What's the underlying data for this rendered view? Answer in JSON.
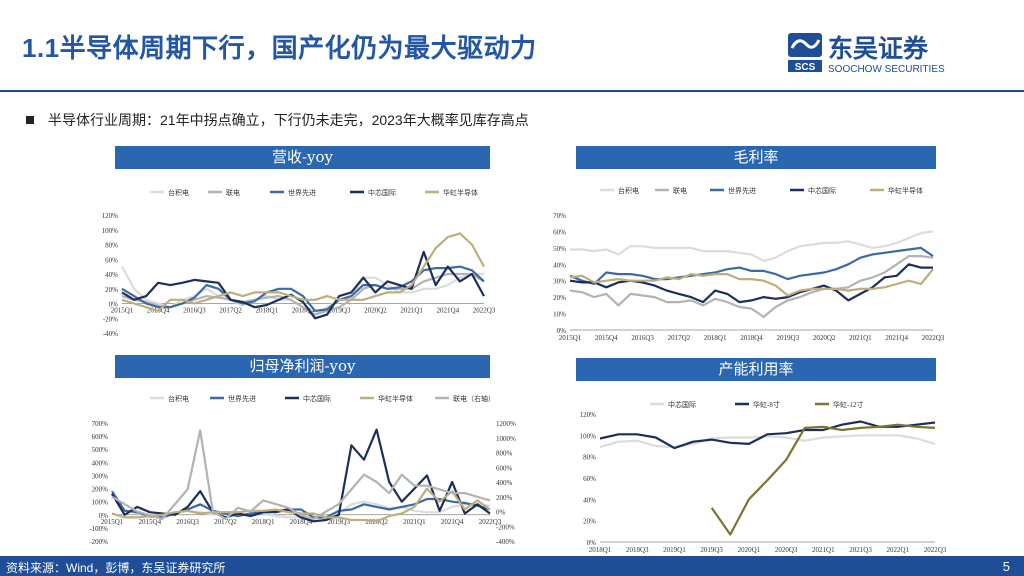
{
  "slide": {
    "title": "1.1半导体周期下行，国产化仍为最大驱动力",
    "bullet": "半导体行业周期：21年中拐点确立，下行仍未走完，2023年大概率见库存高点",
    "footer_source": "资料来源：Wind，彭博，东吴证券研究所",
    "page_number": "5"
  },
  "logo": {
    "name_cn": "东吴证券",
    "name_en": "SOOCHOW SECURITIES",
    "mark_text": "SCS"
  },
  "colors": {
    "brand_blue": "#1f4e96",
    "title_blue": "#2456a6",
    "panel_blue": "#2b67b0"
  },
  "chart_data": [
    {
      "id": "revenue-yoy",
      "type": "line",
      "title": "营收-yoy",
      "categories": [
        "2015Q1",
        "2015Q2",
        "2015Q3",
        "2015Q4",
        "2016Q1",
        "2016Q2",
        "2016Q3",
        "2016Q4",
        "2017Q1",
        "2017Q2",
        "2017Q3",
        "2017Q4",
        "2018Q1",
        "2018Q2",
        "2018Q3",
        "2018Q4",
        "2019Q1",
        "2019Q2",
        "2019Q3",
        "2019Q4",
        "2020Q1",
        "2020Q2",
        "2020Q3",
        "2020Q4",
        "2021Q1",
        "2021Q2",
        "2021Q3",
        "2021Q4",
        "2022Q1",
        "2022Q2",
        "2022Q3"
      ],
      "tick_labels": [
        "2015Q1",
        "2015Q4",
        "2016Q3",
        "2017Q2",
        "2018Q1",
        "2018Q4",
        "2019Q3",
        "2020Q2",
        "2021Q1",
        "2021Q4",
        "2022Q3"
      ],
      "ylim": [
        -40,
        120
      ],
      "yticks": [
        -40,
        -20,
        0,
        20,
        40,
        60,
        80,
        100,
        120
      ],
      "ytick_labels": [
        "-40%",
        "-20%",
        "0%",
        "20%",
        "40%",
        "60%",
        "80%",
        "100%",
        "120%"
      ],
      "series": [
        {
          "name": "台积电",
          "color": "#dcdcdc",
          "values": [
            50,
            20,
            5,
            0,
            -5,
            5,
            10,
            20,
            10,
            5,
            -3,
            5,
            10,
            5,
            5,
            -5,
            -15,
            -5,
            5,
            8,
            35,
            35,
            25,
            15,
            15,
            20,
            20,
            25,
            35,
            40,
            40
          ]
        },
        {
          "name": "联电",
          "color": "#b3b3b3",
          "values": [
            10,
            5,
            2,
            -3,
            -5,
            0,
            5,
            10,
            8,
            5,
            2,
            5,
            8,
            10,
            5,
            -5,
            -15,
            -10,
            -5,
            5,
            20,
            25,
            20,
            20,
            20,
            30,
            35,
            40,
            40,
            40,
            30
          ]
        },
        {
          "name": "世界先进",
          "color": "#3d6aa5",
          "values": [
            20,
            10,
            0,
            -5,
            -5,
            0,
            8,
            25,
            20,
            5,
            0,
            3,
            15,
            20,
            20,
            10,
            -10,
            -8,
            5,
            10,
            25,
            25,
            20,
            22,
            30,
            45,
            48,
            48,
            50,
            45,
            30
          ]
        },
        {
          "name": "中芯国际",
          "color": "#1b2f5a",
          "values": [
            15,
            5,
            10,
            28,
            25,
            28,
            32,
            30,
            28,
            5,
            2,
            -5,
            -2,
            5,
            12,
            2,
            -20,
            -15,
            10,
            15,
            35,
            15,
            30,
            25,
            20,
            70,
            25,
            50,
            30,
            40,
            10
          ]
        },
        {
          "name": "华虹半导体",
          "color": "#bfae7c",
          "values": [
            5,
            0,
            -5,
            -10,
            5,
            5,
            0,
            5,
            10,
            15,
            10,
            15,
            15,
            15,
            10,
            5,
            5,
            10,
            5,
            5,
            5,
            10,
            15,
            15,
            25,
            50,
            75,
            90,
            95,
            80,
            50
          ]
        }
      ]
    },
    {
      "id": "gross-margin",
      "type": "line",
      "title": "毛利率",
      "categories": [
        "2015Q1",
        "2015Q2",
        "2015Q3",
        "2015Q4",
        "2016Q1",
        "2016Q2",
        "2016Q3",
        "2016Q4",
        "2017Q1",
        "2017Q2",
        "2017Q3",
        "2017Q4",
        "2018Q1",
        "2018Q2",
        "2018Q3",
        "2018Q4",
        "2019Q1",
        "2019Q2",
        "2019Q3",
        "2019Q4",
        "2020Q1",
        "2020Q2",
        "2020Q3",
        "2020Q4",
        "2021Q1",
        "2021Q2",
        "2021Q3",
        "2021Q4",
        "2022Q1",
        "2022Q2",
        "2022Q3"
      ],
      "tick_labels": [
        "2015Q1",
        "2015Q4",
        "2016Q3",
        "2017Q2",
        "2018Q1",
        "2018Q4",
        "2019Q3",
        "2020Q2",
        "2021Q1",
        "2021Q4",
        "2022Q3"
      ],
      "ylim": [
        0,
        70
      ],
      "yticks": [
        0,
        10,
        20,
        30,
        40,
        50,
        60,
        70
      ],
      "ytick_labels": [
        "0%",
        "10%",
        "20%",
        "30%",
        "40%",
        "50%",
        "60%",
        "70%"
      ],
      "series": [
        {
          "name": "台积电",
          "color": "#dcdcdc",
          "values": [
            49,
            49,
            48,
            49,
            46,
            51,
            51,
            50,
            50,
            50,
            50,
            48,
            48,
            48,
            47,
            46,
            42,
            44,
            48,
            51,
            52,
            53,
            53,
            54,
            52,
            50,
            51,
            53,
            56,
            59,
            60
          ]
        },
        {
          "name": "联电",
          "color": "#b3b3b3",
          "values": [
            24,
            23,
            20,
            22,
            15,
            22,
            21,
            20,
            17,
            17,
            18,
            15,
            19,
            17,
            14,
            13,
            8,
            14,
            18,
            20,
            23,
            25,
            25,
            26,
            30,
            32,
            35,
            40,
            45,
            45,
            44
          ]
        },
        {
          "name": "世界先进",
          "color": "#3d6aa5",
          "values": [
            33,
            30,
            28,
            35,
            34,
            34,
            33,
            31,
            31,
            32,
            33,
            34,
            35,
            37,
            38,
            36,
            36,
            34,
            31,
            33,
            34,
            35,
            37,
            40,
            44,
            46,
            47,
            48,
            49,
            50,
            45
          ]
        },
        {
          "name": "中芯国际",
          "color": "#1b2f5a",
          "values": [
            30,
            29,
            29,
            26,
            29,
            30,
            29,
            27,
            24,
            22,
            20,
            17,
            24,
            22,
            17,
            18,
            20,
            19,
            20,
            23,
            25,
            27,
            24,
            18,
            22,
            26,
            32,
            33,
            40,
            38,
            38
          ]
        },
        {
          "name": "华虹半导体",
          "color": "#bfae7c",
          "values": [
            32,
            33,
            29,
            30,
            31,
            30,
            30,
            30,
            32,
            31,
            34,
            33,
            34,
            34,
            31,
            31,
            30,
            27,
            21,
            24,
            25,
            25,
            25,
            24,
            25,
            25,
            26,
            28,
            30,
            28,
            37
          ]
        }
      ]
    },
    {
      "id": "net-profit-yoy",
      "type": "line",
      "title": "归母净利润-yoy",
      "categories": [
        "2015Q1",
        "2015Q2",
        "2015Q3",
        "2015Q4",
        "2016Q1",
        "2016Q2",
        "2016Q3",
        "2016Q4",
        "2017Q1",
        "2017Q2",
        "2017Q3",
        "2017Q4",
        "2018Q1",
        "2018Q2",
        "2018Q3",
        "2018Q4",
        "2019Q1",
        "2019Q2",
        "2019Q3",
        "2019Q4",
        "2020Q1",
        "2020Q2",
        "2020Q3",
        "2020Q4",
        "2021Q1",
        "2021Q2",
        "2021Q3",
        "2021Q4",
        "2022Q1",
        "2022Q2",
        "2022Q3"
      ],
      "tick_labels": [
        "2015Q1",
        "2015Q4",
        "2016Q3",
        "2017Q2",
        "2018Q1",
        "2018Q4",
        "2019Q3",
        "2020Q2",
        "2021Q1",
        "2021Q4",
        "2022Q3"
      ],
      "ylim": [
        -200,
        700
      ],
      "yticks": [
        -200,
        -100,
        0,
        100,
        200,
        300,
        400,
        500,
        600,
        700
      ],
      "ytick_labels": [
        "-200%",
        "-100%",
        "0%",
        "100%",
        "200%",
        "300%",
        "400%",
        "500%",
        "600%",
        "700%"
      ],
      "y2lim": [
        -400,
        1200
      ],
      "y2ticks": [
        -400,
        -200,
        0,
        200,
        400,
        600,
        800,
        1000,
        1200
      ],
      "y2tick_labels": [
        "-400%",
        "-200%",
        "0%",
        "200%",
        "400%",
        "600%",
        "800%",
        "1000%",
        "1200%"
      ],
      "series": [
        {
          "name": "台积电",
          "color": "#dcdcdc",
          "axis": "left",
          "values": [
            150,
            40,
            10,
            -20,
            -10,
            10,
            30,
            20,
            0,
            20,
            20,
            30,
            10,
            -10,
            -20,
            -20,
            -30,
            -20,
            10,
            80,
            100,
            80,
            50,
            60,
            30,
            20,
            20,
            60,
            80,
            80,
            70
          ]
        },
        {
          "name": "世界先进",
          "color": "#3d6aa5",
          "axis": "left",
          "values": [
            180,
            30,
            20,
            -10,
            -20,
            10,
            40,
            80,
            30,
            10,
            -10,
            10,
            20,
            30,
            40,
            40,
            -20,
            -20,
            30,
            40,
            80,
            60,
            40,
            60,
            80,
            120,
            120,
            100,
            90,
            70,
            40
          ]
        },
        {
          "name": "中芯国际",
          "color": "#1b2f5a",
          "axis": "left",
          "values": [
            160,
            0,
            60,
            20,
            10,
            0,
            60,
            180,
            20,
            -20,
            10,
            -10,
            20,
            20,
            40,
            -20,
            -50,
            -40,
            0,
            530,
            420,
            650,
            250,
            100,
            200,
            300,
            30,
            250,
            10,
            80,
            10
          ]
        },
        {
          "name": "华虹半导体",
          "color": "#bfae7c",
          "axis": "left",
          "values": [
            10,
            -20,
            -20,
            -10,
            0,
            20,
            30,
            10,
            20,
            20,
            20,
            30,
            30,
            40,
            20,
            10,
            10,
            -20,
            -20,
            -40,
            -40,
            -50,
            -10,
            10,
            60,
            200,
            100,
            180,
            40,
            110,
            40
          ]
        },
        {
          "name": "联电（右轴）",
          "color": "#b3b3b3",
          "axis": "right",
          "values": [
            200,
            100,
            0,
            -50,
            -100,
            100,
            300,
            1100,
            0,
            -100,
            50,
            0,
            150,
            100,
            50,
            -50,
            -100,
            0,
            100,
            300,
            500,
            400,
            250,
            500,
            350,
            350,
            300,
            250,
            250,
            200,
            150
          ]
        }
      ]
    },
    {
      "id": "utilization",
      "type": "line",
      "title": "产能利用率",
      "categories": [
        "2018Q1",
        "2018Q2",
        "2018Q3",
        "2018Q4",
        "2019Q1",
        "2019Q2",
        "2019Q3",
        "2019Q4",
        "2020Q1",
        "2020Q2",
        "2020Q3",
        "2020Q4",
        "2021Q1",
        "2021Q2",
        "2021Q3",
        "2021Q4",
        "2022Q1",
        "2022Q2",
        "2022Q3"
      ],
      "tick_labels": [
        "2018Q1",
        "2018Q3",
        "2019Q1",
        "2019Q3",
        "2020Q1",
        "2020Q3",
        "2021Q1",
        "2021Q3",
        "2022Q1",
        "2022Q3"
      ],
      "ylim": [
        0,
        120
      ],
      "yticks": [
        0,
        20,
        40,
        60,
        80,
        100,
        120
      ],
      "ytick_labels": [
        "0%",
        "20%",
        "40%",
        "60%",
        "80%",
        "100%",
        "120%"
      ],
      "series": [
        {
          "name": "中芯国际",
          "color": "#dcdcdc",
          "values": [
            89,
            94,
            95,
            90,
            89,
            92,
            97,
            98,
            98,
            99,
            98,
            95,
            98,
            99,
            100,
            100,
            100,
            97,
            92
          ]
        },
        {
          "name": "华虹-8寸",
          "color": "#1b2f5a",
          "values": [
            97,
            101,
            101,
            98,
            88,
            94,
            96,
            93,
            92,
            101,
            102,
            105,
            105,
            110,
            113,
            108,
            108,
            110,
            112
          ]
        },
        {
          "name": "华虹-12寸",
          "color": "#7b7530",
          "values": [
            null,
            null,
            null,
            null,
            null,
            null,
            32,
            7,
            40,
            58,
            77,
            107,
            108,
            105,
            107,
            108,
            110,
            108,
            107
          ]
        }
      ]
    }
  ]
}
